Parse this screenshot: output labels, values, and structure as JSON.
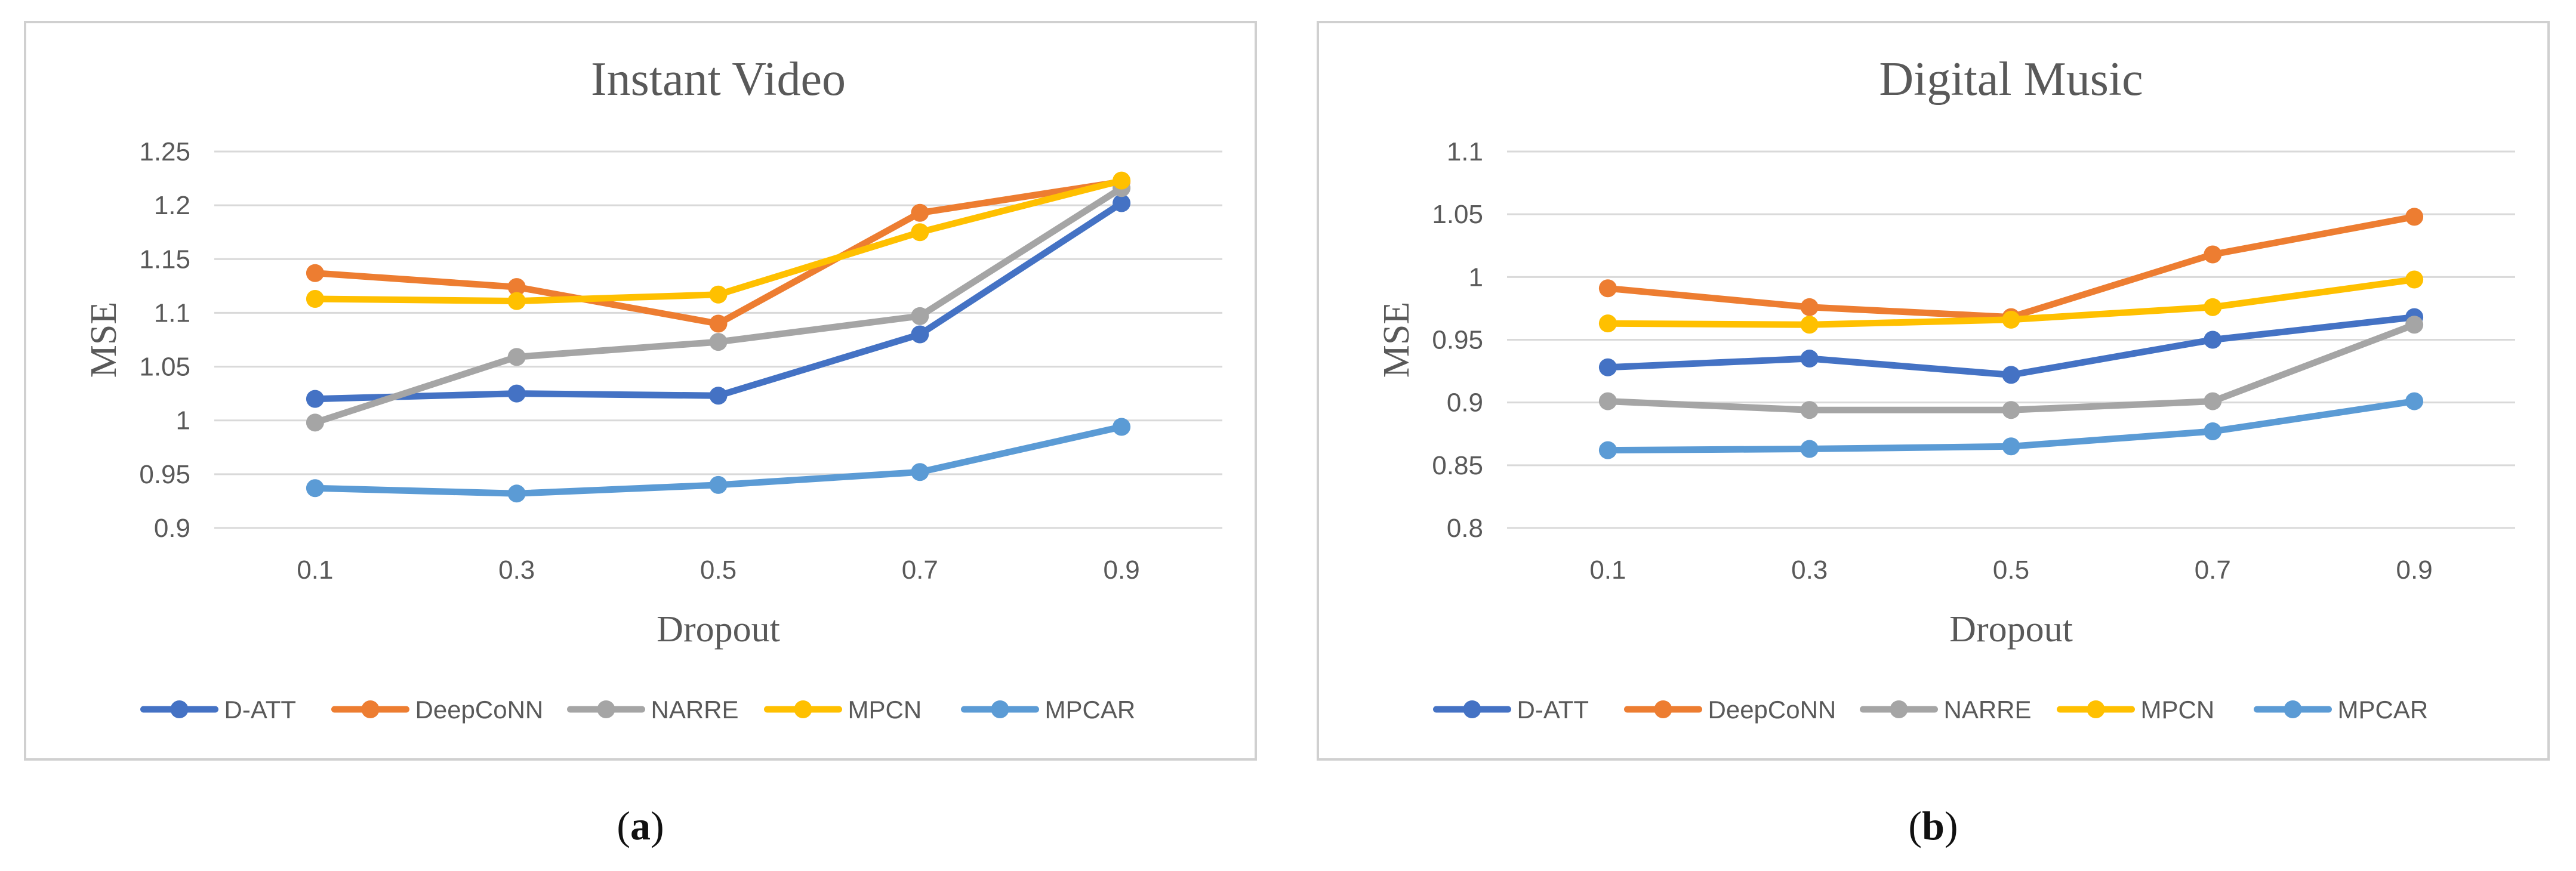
{
  "colors": {
    "D-ATT": "#4472c4",
    "DeepCoNN": "#ed7d31",
    "NARRE": "#a5a5a5",
    "MPCN": "#ffc000",
    "MPCAR": "#5b9bd5",
    "grid": "#d9d9d9",
    "axis_text": "#595959",
    "title": "#595959"
  },
  "captions": [
    {
      "open": "(",
      "letter": "a",
      "close": ")"
    },
    {
      "open": "(",
      "letter": "b",
      "close": ")"
    }
  ],
  "chart_data": [
    {
      "type": "line",
      "title": "Instant Video",
      "xlabel": "Dropout",
      "ylabel": "MSE",
      "categories": [
        "0.1",
        "0.3",
        "0.5",
        "0.7",
        "0.9"
      ],
      "ylim": [
        0.9,
        1.25
      ],
      "yticks": [
        "0.9",
        "0.95",
        "1",
        "1.05",
        "1.1",
        "1.15",
        "1.2",
        "1.25"
      ],
      "grid": true,
      "legend": "bottom",
      "series": [
        {
          "name": "D-ATT",
          "values": [
            1.02,
            1.025,
            1.023,
            1.08,
            1.202
          ]
        },
        {
          "name": "DeepCoNN",
          "values": [
            1.137,
            1.124,
            1.09,
            1.193,
            1.222
          ]
        },
        {
          "name": "NARRE",
          "values": [
            0.998,
            1.059,
            1.073,
            1.097,
            1.216
          ]
        },
        {
          "name": "MPCN",
          "values": [
            1.113,
            1.111,
            1.117,
            1.175,
            1.223
          ]
        },
        {
          "name": "MPCAR",
          "values": [
            0.937,
            0.932,
            0.94,
            0.952,
            0.994
          ]
        }
      ]
    },
    {
      "type": "line",
      "title": "Digital Music",
      "xlabel": "Dropout",
      "ylabel": "MSE",
      "categories": [
        "0.1",
        "0.3",
        "0.5",
        "0.7",
        "0.9"
      ],
      "ylim": [
        0.8,
        1.1
      ],
      "yticks": [
        "0.8",
        "0.85",
        "0.9",
        "0.95",
        "1",
        "1.05",
        "1.1"
      ],
      "grid": true,
      "legend": "bottom",
      "series": [
        {
          "name": "D-ATT",
          "values": [
            0.928,
            0.935,
            0.922,
            0.95,
            0.968
          ]
        },
        {
          "name": "DeepCoNN",
          "values": [
            0.991,
            0.976,
            0.968,
            1.018,
            1.048
          ]
        },
        {
          "name": "NARRE",
          "values": [
            0.901,
            0.894,
            0.894,
            0.901,
            0.962
          ]
        },
        {
          "name": "MPCN",
          "values": [
            0.963,
            0.962,
            0.966,
            0.976,
            0.998
          ]
        },
        {
          "name": "MPCAR",
          "values": [
            0.862,
            0.863,
            0.865,
            0.877,
            0.901
          ]
        }
      ]
    }
  ]
}
